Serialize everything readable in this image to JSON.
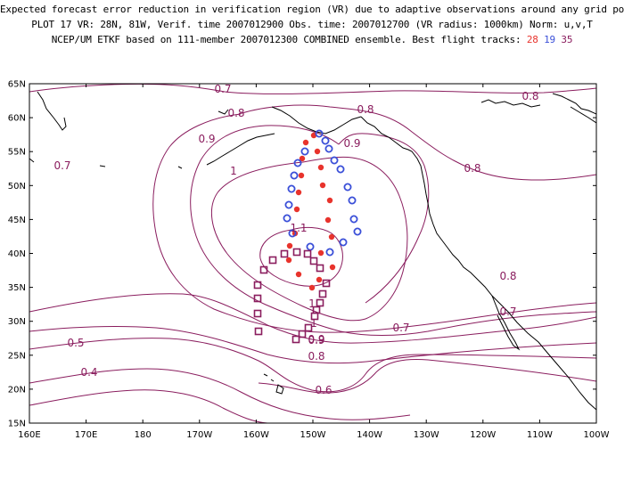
{
  "header": {
    "line1": "Expected forecast error reduction in verification region (VR) due to adaptive observations around any grid point.",
    "line2": "PLOT 17 VR: 28N, 81W, Verif. time 2007012900 Obs. time: 2007012700 (VR radius: 1000km) Norm: u,v,T",
    "line3_prefix": "NCEP/UM ETKF based on 111-member 2007012300 COMBINED ensemble.  Best flight tracks: ",
    "track_a": "28",
    "track_b": "19",
    "track_c": "35"
  },
  "axes": {
    "lat_labels": [
      "65N",
      "60N",
      "55N",
      "50N",
      "45N",
      "40N",
      "35N",
      "30N",
      "25N",
      "20N",
      "15N"
    ],
    "lon_labels": [
      "160E",
      "170E",
      "180",
      "170W",
      "160W",
      "150W",
      "140W",
      "130W",
      "120W",
      "110W",
      "100W"
    ]
  },
  "contour_labels": [
    "0.7",
    "0.7",
    "0.8",
    "0.8",
    "0.8",
    "0.8",
    "0.9",
    "0.9",
    "0.9",
    "1",
    "1",
    "1.1",
    "1",
    "0.9",
    "0.8",
    "0.8",
    "0.7",
    "0.7",
    "0.5",
    "0.4",
    "0.6"
  ],
  "colors": {
    "contour": "#8a1d5e",
    "coast": "#000000",
    "track_28": "#e8332c",
    "track_19": "#3a4fd8",
    "track_35": "#8a1d5e"
  }
}
